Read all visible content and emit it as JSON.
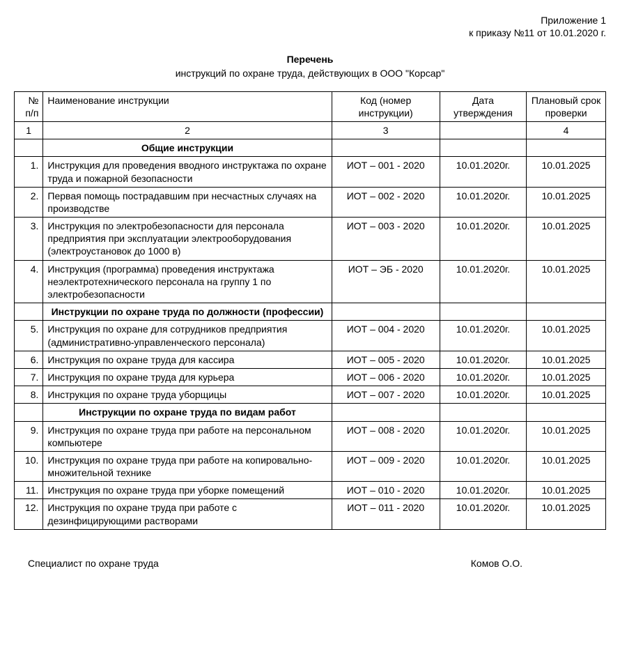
{
  "header": {
    "line1": "Приложение 1",
    "line2": "к приказу №11 от 10.01.2020 г."
  },
  "title": {
    "main": "Перечень",
    "sub": "инструкций по охране труда, действующих в ООО \"Корсар\""
  },
  "table": {
    "columns": [
      {
        "label": "№ п/п",
        "num": "1"
      },
      {
        "label": "Наименование инструкции",
        "num": "2"
      },
      {
        "label": "Код (номер инструкции)",
        "num": "3"
      },
      {
        "label": "Дата утверждения",
        "num": ""
      },
      {
        "label": "Плановый срок проверки",
        "num": "4"
      }
    ],
    "rows": [
      {
        "type": "section",
        "name": "Общие инструкции"
      },
      {
        "type": "data",
        "num": "1.",
        "name": "Инструкция для проведения вводного инструктажа по охране труда и пожарной безопасности",
        "code": "ИОТ – 001 - 2020",
        "date": "10.01.2020г.",
        "review": "10.01.2025"
      },
      {
        "type": "data",
        "num": "2.",
        "name": "Первая помощь пострадавшим при несчастных случаях на производстве",
        "code": "ИОТ – 002 - 2020",
        "date": "10.01.2020г.",
        "review": "10.01.2025"
      },
      {
        "type": "data",
        "num": "3.",
        "name": "Инструкция по электробезопасности для персонала предприятия при эксплуатации электрооборудования (электроустановок до 1000 в)",
        "code": "ИОТ – 003 - 2020",
        "date": "10.01.2020г.",
        "review": "10.01.2025"
      },
      {
        "type": "data",
        "num": "4.",
        "name": "Инструкция (программа) проведения инструктажа неэлектротехнического персонала на группу 1 по электробезопасности",
        "code": "ИОТ – ЭБ - 2020",
        "date": "10.01.2020г.",
        "review": "10.01.2025"
      },
      {
        "type": "section",
        "name": "Инструкции по охране труда по должности (профессии)"
      },
      {
        "type": "data",
        "num": "5.",
        "name": "Инструкция по охране для сотрудников предприятия (административно-управленческого персонала)",
        "code": "ИОТ – 004 - 2020",
        "date": "10.01.2020г.",
        "review": "10.01.2025"
      },
      {
        "type": "data",
        "num": "6.",
        "name": "Инструкция по охране труда для кассира",
        "code": "ИОТ – 005 - 2020",
        "date": "10.01.2020г.",
        "review": "10.01.2025"
      },
      {
        "type": "data",
        "num": "7.",
        "name": "Инструкция по охране труда для курьера",
        "code": "ИОТ – 006 - 2020",
        "date": "10.01.2020г.",
        "review": "10.01.2025"
      },
      {
        "type": "data",
        "num": "8.",
        "name": "Инструкция по охране труда уборщицы",
        "code": "ИОТ – 007 - 2020",
        "date": "10.01.2020г.",
        "review": "10.01.2025"
      },
      {
        "type": "section",
        "name": "Инструкции по охране труда по видам работ"
      },
      {
        "type": "data",
        "num": "9.",
        "name": "Инструкция по охране труда при работе на персональном компьютере",
        "code": "ИОТ – 008 - 2020",
        "date": "10.01.2020г.",
        "review": "10.01.2025"
      },
      {
        "type": "data",
        "num": "10.",
        "name": "Инструкция по охране труда при работе на копировально-множительной технике",
        "code": "ИОТ – 009 - 2020",
        "date": "10.01.2020г.",
        "review": "10.01.2025"
      },
      {
        "type": "data",
        "num": "11.",
        "name": "Инструкция по охране труда при уборке помещений",
        "code": "ИОТ – 010 - 2020",
        "date": "10.01.2020г.",
        "review": "10.01.2025"
      },
      {
        "type": "data",
        "num": "12.",
        "name": "Инструкция по охране труда при работе с дезинфицирующими растворами",
        "code": "ИОТ – 011 - 2020",
        "date": "10.01.2020г.",
        "review": "10.01.2025"
      }
    ],
    "colors": {
      "border": "#000000",
      "background": "#ffffff",
      "text": "#000000"
    },
    "font": {
      "family": "Arial",
      "size_pt": 11
    }
  },
  "signature": {
    "role": "Специалист по охране труда",
    "name": "Комов О.О."
  }
}
